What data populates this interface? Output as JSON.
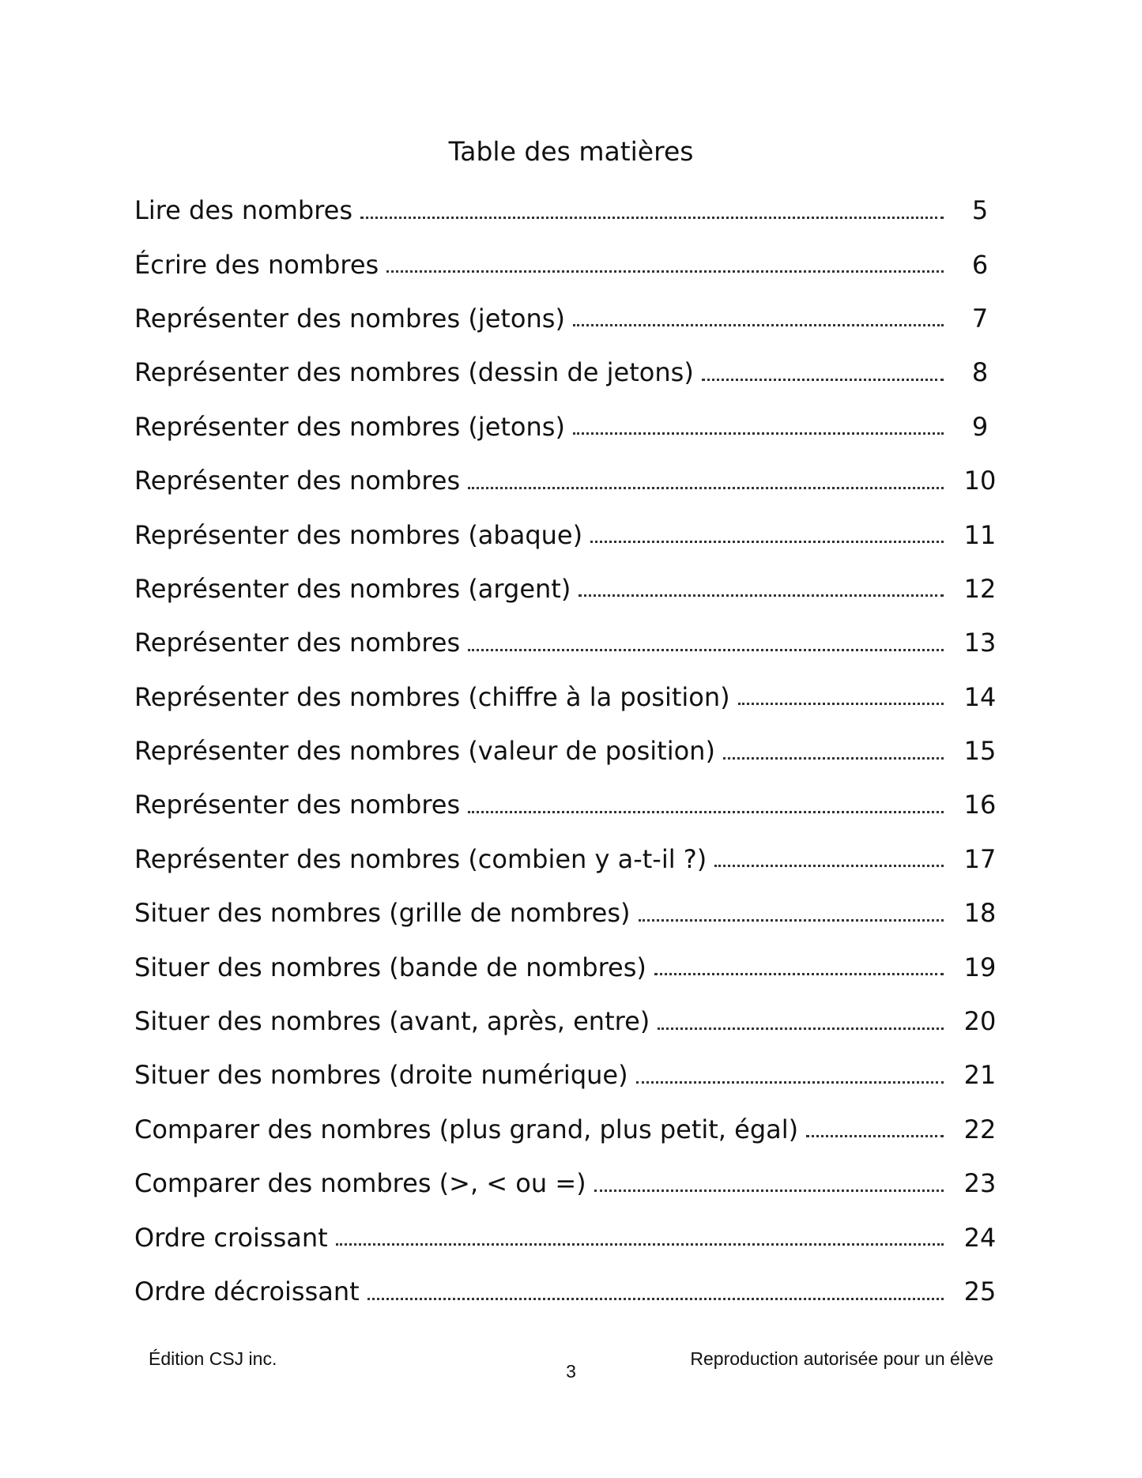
{
  "title": "Table des matières",
  "entries": [
    {
      "label": "Lire des nombres",
      "page": "5"
    },
    {
      "label": "Écrire des nombres",
      "page": "6"
    },
    {
      "label": "Représenter des nombres (jetons)",
      "page": "7"
    },
    {
      "label": "Représenter des nombres (dessin de jetons)",
      "page": "8"
    },
    {
      "label": "Représenter des nombres (jetons)",
      "page": "9"
    },
    {
      "label": "Représenter des nombres",
      "page": "10"
    },
    {
      "label": "Représenter des nombres (abaque)",
      "page": "11"
    },
    {
      "label": "Représenter des nombres (argent)",
      "page": "12"
    },
    {
      "label": "Représenter des nombres",
      "page": "13"
    },
    {
      "label": "Représenter des nombres (chiffre à la position)",
      "page": "14"
    },
    {
      "label": "Représenter des nombres (valeur de position)",
      "page": "15"
    },
    {
      "label": "Représenter des nombres",
      "page": "16"
    },
    {
      "label": "Représenter des nombres (combien y a-t-il ?)",
      "page": "17"
    },
    {
      "label": "Situer des nombres (grille de nombres)",
      "page": "18"
    },
    {
      "label": "Situer des nombres (bande de nombres)",
      "page": "19"
    },
    {
      "label": "Situer des nombres (avant, après, entre)",
      "page": "20"
    },
    {
      "label": "Situer des nombres (droite numérique)",
      "page": "21"
    },
    {
      "label": "Comparer des nombres (plus grand, plus petit, égal)",
      "page": "22"
    },
    {
      "label": "Comparer des nombres (>, < ou =)",
      "page": "23"
    },
    {
      "label": "Ordre croissant",
      "page": "24"
    },
    {
      "label": "Ordre décroissant",
      "page": "25"
    }
  ],
  "footer": {
    "publisher": "Édition CSJ inc.",
    "page_number": "3",
    "notice": "Reproduction autorisée pour un élève"
  }
}
